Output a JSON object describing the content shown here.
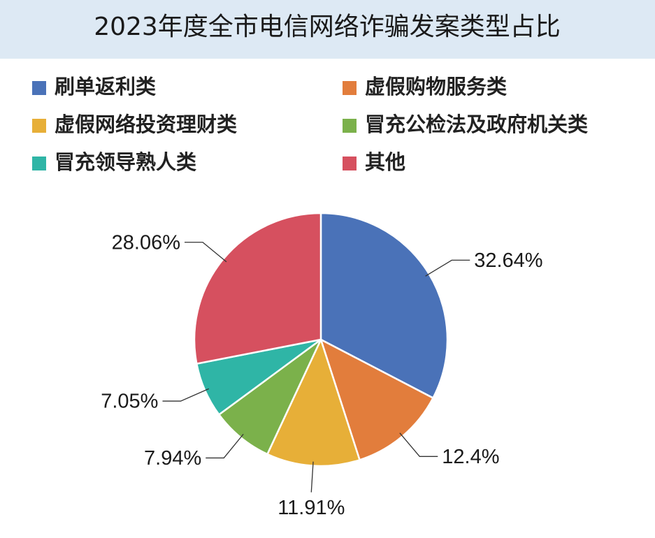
{
  "chart_data": {
    "type": "pie",
    "title": "2023年度全市电信网络诈骗发案类型占比",
    "categories": [
      "刷单返利类",
      "虚假购物服务类",
      "虚假网络投资理财类",
      "冒充公检法及政府机关类",
      "冒充领导熟人类",
      "其他"
    ],
    "values": [
      32.64,
      12.4,
      11.91,
      7.94,
      7.05,
      28.06
    ],
    "value_labels": [
      "32.64%",
      "12.4%",
      "11.91%",
      "7.94%",
      "7.05%",
      "28.06%"
    ],
    "colors": [
      "#4a72b8",
      "#e27d3c",
      "#e7af38",
      "#7bb14b",
      "#2fb5a6",
      "#d6505f"
    ],
    "legend": "top"
  }
}
